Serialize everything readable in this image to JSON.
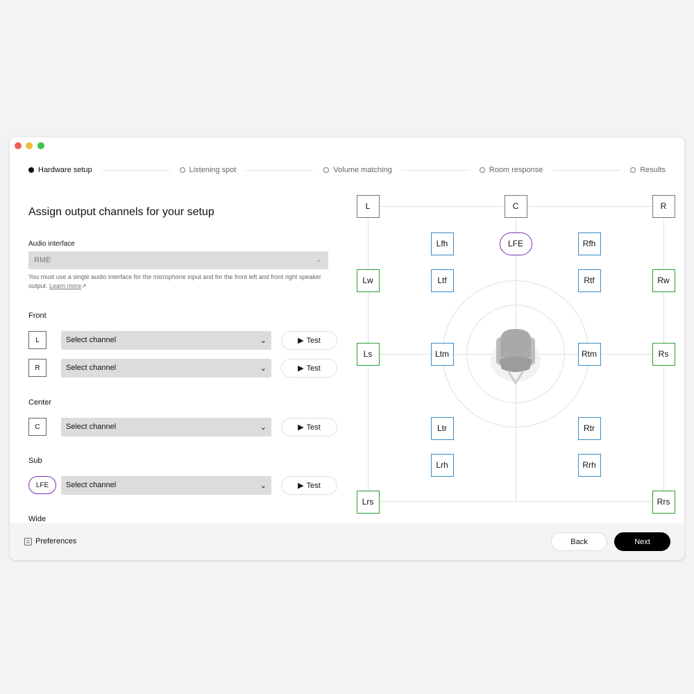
{
  "window": {
    "controls": [
      "close",
      "minimize",
      "zoom"
    ]
  },
  "steps": [
    {
      "label": "Hardware setup",
      "active": true
    },
    {
      "label": "Listening spot",
      "active": false
    },
    {
      "label": "Volume matching",
      "active": false
    },
    {
      "label": "Room response",
      "active": false
    },
    {
      "label": "Results",
      "active": false
    }
  ],
  "main": {
    "title": "Assign output channels for your setup",
    "audio_interface_label": "Audio interface",
    "audio_interface_value": "RME",
    "help_text": "You must use a single audio interface for the microphone input and for the front left and front right speaker output.",
    "learn_more": "Learn more",
    "sections": {
      "front": "Front",
      "center": "Center",
      "sub": "Sub",
      "wide": "Wide"
    },
    "rows": [
      {
        "chip": "L",
        "select": "Select channel",
        "test": "Test"
      },
      {
        "chip": "R",
        "select": "Select channel",
        "test": "Test"
      },
      {
        "chip": "C",
        "select": "Select channel",
        "test": "Test"
      },
      {
        "chip": "LFE",
        "select": "Select channel",
        "test": "Test"
      }
    ]
  },
  "footer": {
    "preferences": "Preferences",
    "back": "Back",
    "next": "Next"
  },
  "colors": {
    "main": "#777777",
    "height": "#3a8cc4",
    "wide_surround": "#2a9d2a",
    "lfe": "#7b2fb5",
    "close": "#ee5d56",
    "minimize": "#f5b93d",
    "zoom": "#3fc14a"
  },
  "speakers": [
    {
      "label": "L",
      "type": "main"
    },
    {
      "label": "C",
      "type": "main"
    },
    {
      "label": "R",
      "type": "main"
    },
    {
      "label": "Lfh",
      "type": "height"
    },
    {
      "label": "LFE",
      "type": "lfe"
    },
    {
      "label": "Rfh",
      "type": "height"
    },
    {
      "label": "Lw",
      "type": "wide_surround"
    },
    {
      "label": "Ltf",
      "type": "height"
    },
    {
      "label": "Rtf",
      "type": "height"
    },
    {
      "label": "Rw",
      "type": "wide_surround"
    },
    {
      "label": "Ls",
      "type": "wide_surround"
    },
    {
      "label": "Ltm",
      "type": "height"
    },
    {
      "label": "Rtm",
      "type": "height"
    },
    {
      "label": "Rs",
      "type": "wide_surround"
    },
    {
      "label": "Ltr",
      "type": "height"
    },
    {
      "label": "Rtr",
      "type": "height"
    },
    {
      "label": "Lrh",
      "type": "height"
    },
    {
      "label": "Rrh",
      "type": "height"
    },
    {
      "label": "Lrs",
      "type": "wide_surround"
    },
    {
      "label": "Rrs",
      "type": "wide_surround"
    }
  ]
}
